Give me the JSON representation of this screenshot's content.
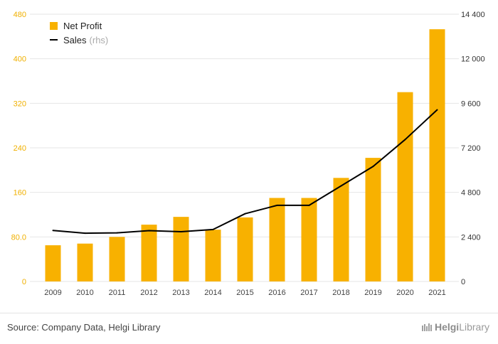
{
  "chart_data": {
    "type": "bar",
    "categories": [
      "2009",
      "2010",
      "2011",
      "2012",
      "2013",
      "2014",
      "2015",
      "2016",
      "2017",
      "2018",
      "2019",
      "2020",
      "2021"
    ],
    "series": [
      {
        "name": "Net Profit",
        "type": "bar",
        "axis": "left",
        "color": "#f8b100",
        "values": [
          65,
          68,
          80,
          102,
          116,
          93,
          115,
          150,
          150,
          186,
          222,
          340,
          453
        ]
      },
      {
        "name": "Sales",
        "name_suffix": "(rhs)",
        "type": "line",
        "axis": "right",
        "color": "#000000",
        "values": [
          2750,
          2600,
          2620,
          2740,
          2680,
          2800,
          3650,
          4100,
          4100,
          5150,
          6200,
          7650,
          9250
        ]
      }
    ],
    "left_axis": {
      "ylim": [
        0,
        480
      ],
      "ticks": [
        "0",
        "80.0",
        "160",
        "240",
        "320",
        "400",
        "480"
      ],
      "tick_values": [
        0,
        80,
        160,
        240,
        320,
        400,
        480
      ]
    },
    "right_axis": {
      "ylim": [
        0,
        14400
      ],
      "ticks": [
        "0",
        "2 400",
        "4 800",
        "7 200",
        "9 600",
        "12 000",
        "14 400"
      ],
      "tick_values": [
        0,
        2400,
        4800,
        7200,
        9600,
        12000,
        14400
      ]
    },
    "grid": true,
    "legend_position": "top-left"
  },
  "footer": {
    "source": "Source: Company Data, Helgi Library",
    "brand_prefix": "Helgi",
    "brand_suffix": "Library"
  }
}
